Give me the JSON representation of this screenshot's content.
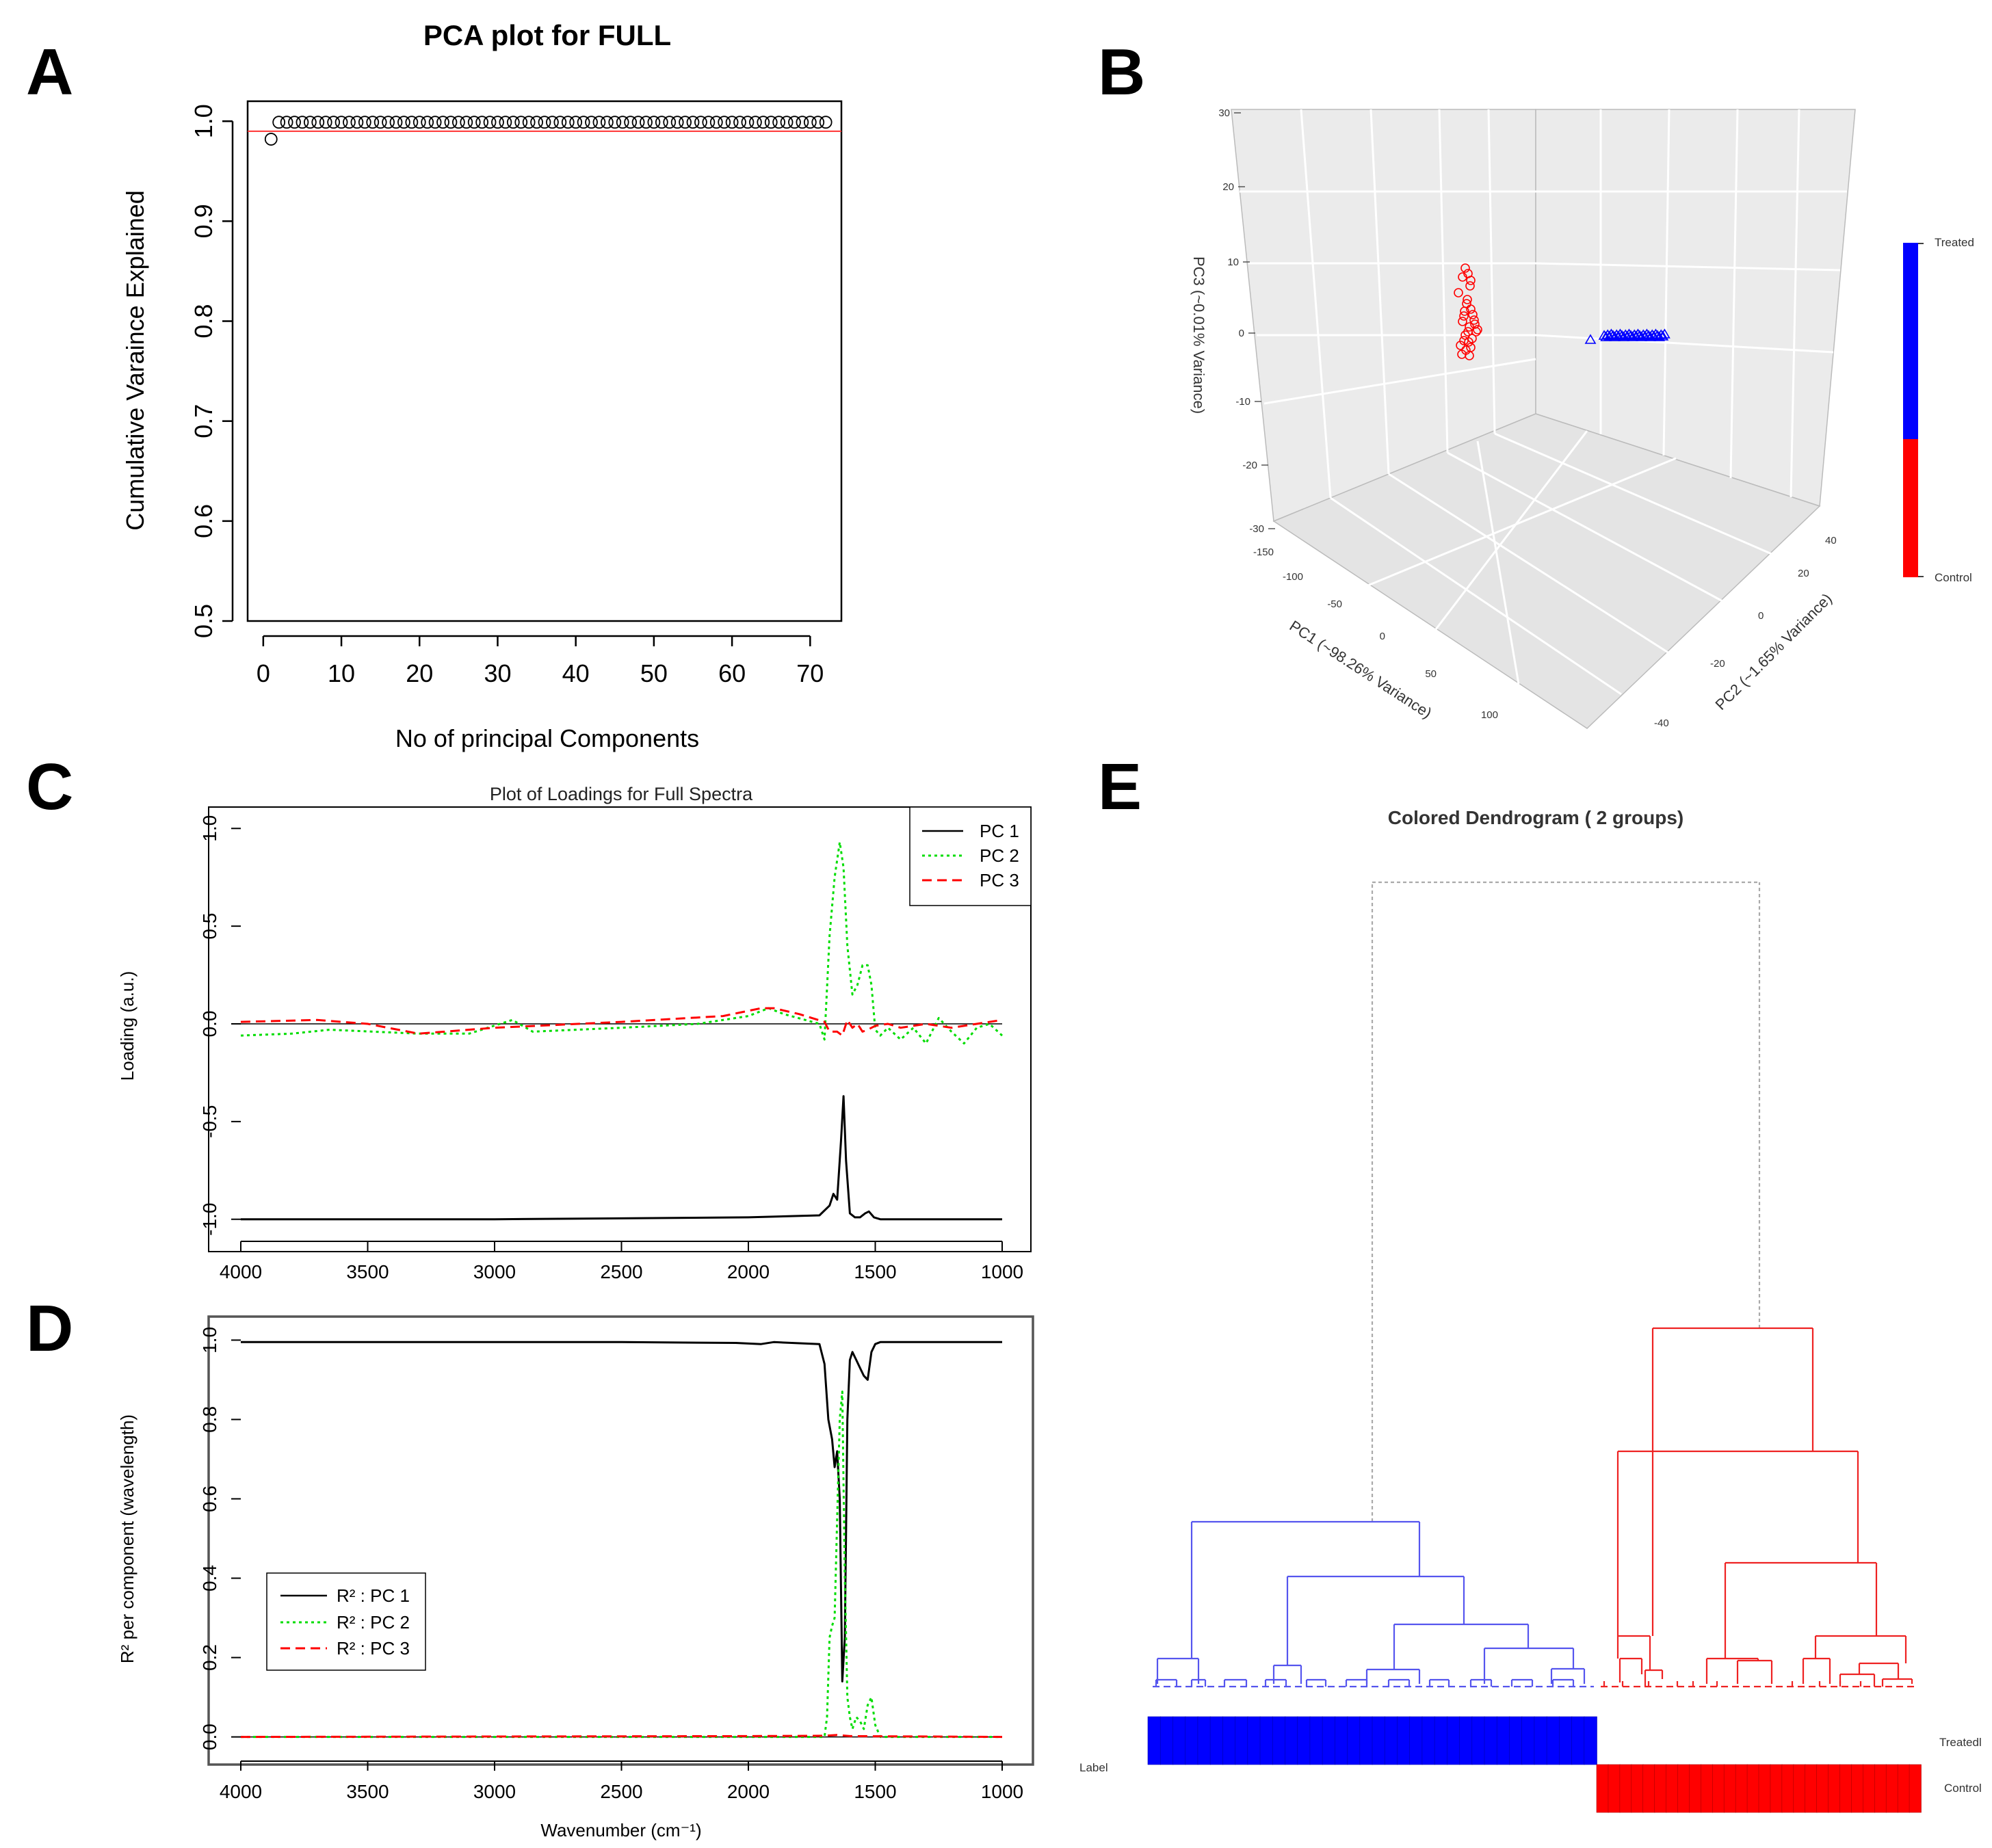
{
  "panel_labels": {
    "a": "A",
    "b": "B",
    "c": "C",
    "d": "D",
    "e": "E"
  },
  "colors": {
    "pc1": "#000000",
    "pc2": "#00dd00",
    "pc3": "#ff0000",
    "treated": "#0000ff",
    "control": "#ff0000",
    "cluster1": "#5555ee",
    "cluster2": "#ee2222",
    "cutoff": "#ff3333"
  },
  "chart_data": [
    {
      "id": "A",
      "type": "scatter",
      "title": "PCA plot for FULL",
      "xlabel": "No of principal Components",
      "ylabel": "Cumulative Varaince Explained",
      "xlim": [
        -2,
        74
      ],
      "ylim": [
        0.5,
        1.02
      ],
      "xticks": [
        "0",
        "10",
        "20",
        "30",
        "40",
        "50",
        "60",
        "70"
      ],
      "yticks": [
        "0.5",
        "0.6",
        "0.7",
        "0.8",
        "0.9",
        "1.0"
      ],
      "x_range": [
        1,
        72
      ],
      "first_value": 0.982,
      "rest_value": 0.999,
      "reference_line": 0.99
    },
    {
      "id": "B",
      "type": "scatter",
      "subtype": "3d",
      "axes": {
        "x": {
          "label": "PC1 (~98.26% Variance)",
          "ticks": [
            "-150",
            "-100",
            "-50",
            "0",
            "50",
            "100"
          ]
        },
        "y": {
          "label": "PC2 (~1.65% Variance)",
          "ticks": [
            "-40",
            "-20",
            "0",
            "20",
            "40"
          ]
        },
        "z": {
          "label": "PC3 (~0.01% Variance)",
          "ticks": [
            "30",
            "20",
            "10",
            "0",
            "-10",
            "-20",
            "-30"
          ]
        }
      },
      "legend": {
        "top": "Treated",
        "bottom": "Control"
      },
      "series": [
        {
          "name": "Control",
          "marker": "circle",
          "n": 28
        },
        {
          "name": "Treated",
          "marker": "triangle",
          "n": 36
        }
      ]
    },
    {
      "id": "C",
      "type": "line",
      "title": "Plot of Loadings for Full Spectra",
      "ylabel": "Loading (a.u.)",
      "xlim": [
        4000,
        1000
      ],
      "ylim": [
        -1.05,
        1.05
      ],
      "xticks": [
        "4000",
        "3500",
        "3000",
        "2500",
        "2000",
        "1500",
        "1000"
      ],
      "yticks": [
        "1.0",
        "0.5",
        "0.0",
        "-0.5",
        "-1.0"
      ],
      "legend": [
        "PC 1",
        "PC 2",
        "PC 3"
      ],
      "series": [
        {
          "name": "PC 1",
          "x": [
            4000,
            3000,
            2000,
            1720,
            1680,
            1665,
            1650,
            1635,
            1625,
            1615,
            1600,
            1580,
            1560,
            1540,
            1525,
            1505,
            1480,
            1400,
            1000
          ],
          "y": [
            -1.0,
            -1.0,
            -0.99,
            -0.98,
            -0.93,
            -0.87,
            -0.9,
            -0.6,
            -0.37,
            -0.7,
            -0.97,
            -0.99,
            -0.99,
            -0.97,
            -0.96,
            -0.99,
            -1.0,
            -1.0,
            -1.0
          ]
        },
        {
          "name": "PC 2",
          "x": [
            4000,
            3800,
            3650,
            3300,
            3100,
            2930,
            2850,
            2500,
            2200,
            2000,
            1920,
            1860,
            1720,
            1700,
            1680,
            1660,
            1640,
            1625,
            1610,
            1590,
            1570,
            1550,
            1530,
            1515,
            1500,
            1480,
            1450,
            1400,
            1350,
            1300,
            1250,
            1200,
            1150,
            1100,
            1050,
            1000
          ],
          "y": [
            -0.06,
            -0.05,
            -0.03,
            -0.05,
            -0.05,
            0.02,
            -0.04,
            -0.02,
            0.0,
            0.04,
            0.08,
            0.05,
            0.0,
            -0.08,
            0.45,
            0.75,
            0.93,
            0.8,
            0.4,
            0.15,
            0.2,
            0.3,
            0.3,
            0.2,
            -0.03,
            -0.06,
            -0.02,
            -0.08,
            -0.02,
            -0.1,
            0.03,
            -0.04,
            -0.1,
            -0.02,
            0.0,
            -0.06
          ]
        },
        {
          "name": "PC 3",
          "x": [
            4000,
            3700,
            3500,
            3300,
            3000,
            2500,
            2100,
            1950,
            1900,
            1800,
            1700,
            1680,
            1650,
            1630,
            1610,
            1590,
            1570,
            1550,
            1530,
            1500,
            1450,
            1400,
            1300,
            1200,
            1100,
            1000
          ],
          "y": [
            0.01,
            0.02,
            0.0,
            -0.05,
            -0.02,
            0.01,
            0.04,
            0.08,
            0.08,
            0.05,
            0.01,
            -0.04,
            -0.04,
            -0.06,
            0.02,
            -0.02,
            0.0,
            -0.04,
            -0.03,
            -0.01,
            0.0,
            -0.02,
            0.0,
            -0.02,
            0.0,
            0.02
          ]
        }
      ]
    },
    {
      "id": "D",
      "type": "line",
      "xlabel": "Wavenumber (cm⁻¹)",
      "ylabel": "R² per component (wavelength)",
      "xlim": [
        4000,
        1000
      ],
      "ylim": [
        -0.03,
        1.03
      ],
      "xticks": [
        "4000",
        "3500",
        "3000",
        "2500",
        "2000",
        "1500",
        "1000"
      ],
      "yticks": [
        "1.0",
        "0.8",
        "0.6",
        "0.4",
        "0.2",
        "0.0"
      ],
      "legend": [
        "R² : PC 1",
        "R² : PC 2",
        "R² : PC 3"
      ],
      "series": [
        {
          "name": "R² : PC 1",
          "x": [
            4000,
            3000,
            2500,
            2050,
            1950,
            1900,
            1720,
            1700,
            1685,
            1670,
            1660,
            1650,
            1640,
            1630,
            1620,
            1610,
            1600,
            1590,
            1575,
            1560,
            1545,
            1530,
            1515,
            1500,
            1480,
            1400,
            1000
          ],
          "y": [
            0.995,
            0.995,
            0.995,
            0.993,
            0.99,
            0.995,
            0.99,
            0.94,
            0.8,
            0.75,
            0.68,
            0.72,
            0.6,
            0.14,
            0.25,
            0.8,
            0.95,
            0.97,
            0.95,
            0.93,
            0.91,
            0.9,
            0.97,
            0.99,
            0.995,
            0.995,
            0.995
          ]
        },
        {
          "name": "R² : PC 2",
          "x": [
            4000,
            1800,
            1700,
            1690,
            1680,
            1670,
            1660,
            1650,
            1640,
            1630,
            1620,
            1610,
            1600,
            1590,
            1575,
            1560,
            1545,
            1530,
            1515,
            1500,
            1480,
            1000
          ],
          "y": [
            0.0,
            0.0,
            0.0,
            0.05,
            0.25,
            0.28,
            0.3,
            0.55,
            0.8,
            0.87,
            0.4,
            0.1,
            0.05,
            0.02,
            0.05,
            0.04,
            0.02,
            0.08,
            0.1,
            0.03,
            0.0,
            0.0
          ]
        },
        {
          "name": "R² : PC 3",
          "x": [
            4000,
            2000,
            1700,
            1650,
            1600,
            1000
          ],
          "y": [
            0.0,
            0.002,
            0.003,
            0.005,
            0.002,
            0.0
          ]
        }
      ]
    },
    {
      "id": "E",
      "type": "dendrogram",
      "title": "Colored Dendrogram ( 2  groups)",
      "label_row_title": "Label",
      "groups": [
        "Treatedl",
        "Control"
      ],
      "n_treated": 36,
      "n_control": 28
    }
  ]
}
